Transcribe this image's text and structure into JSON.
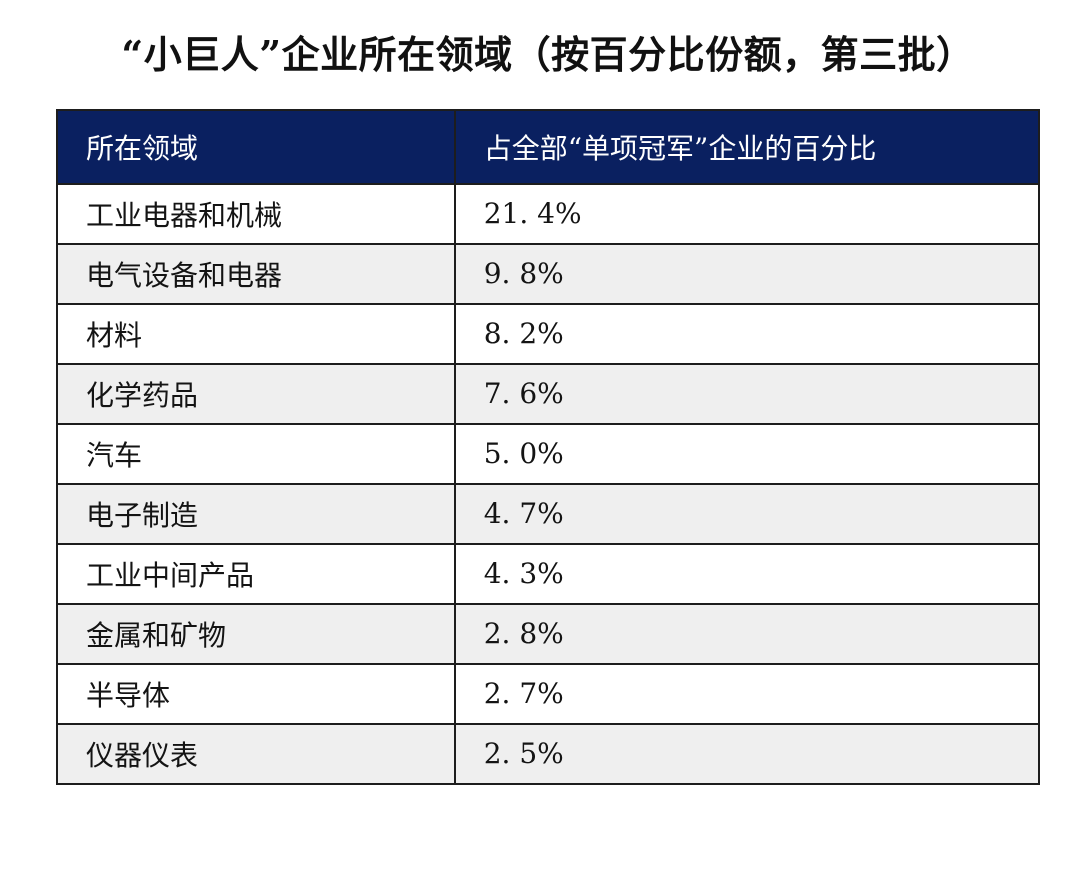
{
  "title": "“小巨人”企业所在领域（按百分比份额，第三批）",
  "table": {
    "headers": [
      "所在领域",
      "占全部“单项冠军”企业的百分比"
    ],
    "rows": [
      {
        "field": "工业电器和机械",
        "share_display": "21. 4%"
      },
      {
        "field": "电气设备和电器",
        "share_display": "9. 8%"
      },
      {
        "field": "材料",
        "share_display": "8. 2%"
      },
      {
        "field": "化学药品",
        "share_display": "7. 6%"
      },
      {
        "field": "汽车",
        "share_display": "5. 0%"
      },
      {
        "field": "电子制造",
        "share_display": "4. 7%"
      },
      {
        "field": "工业中间产品",
        "share_display": "4. 3%"
      },
      {
        "field": "金属和矿物",
        "share_display": "2. 8%"
      },
      {
        "field": "半导体",
        "share_display": "2. 7%"
      },
      {
        "field": "仪器仪表",
        "share_display": "2. 5%"
      }
    ]
  },
  "colors": {
    "header_bg": "#0a2060",
    "header_text": "#ffffff",
    "row_alt_bg": "#efefef",
    "row_bg": "#ffffff",
    "border": "#1d1d1d",
    "text": "#141414",
    "page_bg": "#ffffff"
  },
  "chart_data": {
    "type": "table",
    "title": "“小巨人”企业所在领域（按百分比份额，第三批）",
    "columns": [
      "所在领域",
      "占全部“单项冠军”企业的百分比"
    ],
    "categories": [
      "工业电器和机械",
      "电气设备和电器",
      "材料",
      "化学药品",
      "汽车",
      "电子制造",
      "工业中间产品",
      "金属和矿物",
      "半导体",
      "仪器仪表"
    ],
    "values": [
      21.4,
      9.8,
      8.2,
      7.6,
      5.0,
      4.7,
      4.3,
      2.8,
      2.7,
      2.5
    ],
    "value_unit": "%",
    "layout_hints": {
      "header_style": "dark-navy with white text",
      "row_striping": "white / light-gray alternating starting white",
      "grid": "all borders, dark 2px"
    }
  }
}
